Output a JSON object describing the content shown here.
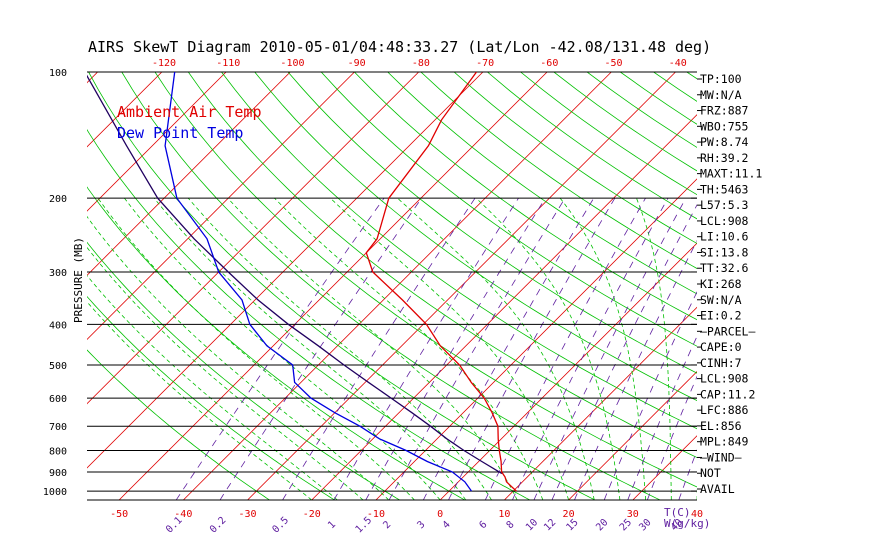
{
  "chart_data": {
    "type": "line",
    "title": "AIRS SkewT Diagram 2010-05-01/04:48:33.27 (Lat/Lon -42.08/131.48 deg)",
    "ylabel": "PRESSURE (MB)",
    "xlabel": "T(C)",
    "mixing_ratio_label": "W(g/kg)",
    "legend": [
      "Ambient Air Temp",
      "Dew Point Temp"
    ],
    "pressure_ticks": [
      100,
      200,
      300,
      400,
      500,
      600,
      700,
      800,
      900,
      1000
    ],
    "bottom_temp_ticks": [
      -50,
      -40,
      -30,
      -20,
      -10,
      0,
      10,
      20,
      30,
      40
    ],
    "top_temp_ticks": [
      -120,
      -110,
      -100,
      -90,
      -80,
      -70,
      -60,
      -50,
      -40
    ],
    "mixing_ratio_ticks": [
      "0.1",
      "0.2",
      "0.5",
      "1",
      "1.5",
      "2",
      "3",
      "4",
      "6",
      "8",
      "10",
      "12",
      "15",
      "20",
      "25",
      "30",
      "40"
    ],
    "ylim": [
      1050,
      100
    ],
    "xlim": [
      -55,
      45
    ],
    "colors": {
      "temperature": "#e00000",
      "dewpoint": "#0000e0",
      "isotherm": "#e00000",
      "dry_adiabat": "#00c000",
      "moist_adiabat": "#00c000",
      "mixing_ratio": "#6020a0",
      "parcel": "#200060",
      "isobar": "#000000"
    },
    "series": [
      {
        "name": "Ambient Air Temp",
        "pressure": [
          1000,
          975,
          950,
          925,
          900,
          850,
          800,
          750,
          700,
          650,
          600,
          550,
          500,
          450,
          400,
          350,
          300,
          270,
          250,
          200,
          150,
          130,
          100
        ],
        "temperature": [
          10.5,
          9.0,
          7.5,
          6.5,
          5.2,
          3.5,
          1.5,
          -0.5,
          -2.5,
          -5.5,
          -9.0,
          -13.5,
          -18.0,
          -24.0,
          -29.5,
          -37.0,
          -46.0,
          -50.0,
          -50.5,
          -55.0,
          -57.0,
          -59.0,
          -61.0
        ]
      },
      {
        "name": "Dew Point Temp",
        "pressure": [
          1000,
          950,
          900,
          850,
          800,
          750,
          700,
          650,
          600,
          550,
          500,
          450,
          400,
          350,
          300,
          250,
          200,
          150,
          100
        ],
        "dewpoint": [
          3.5,
          1.0,
          -2.5,
          -8.0,
          -13.0,
          -19.0,
          -24.0,
          -30.0,
          -36.0,
          -41.0,
          -44.0,
          -51.0,
          -57.0,
          -62.0,
          -70.0,
          -77.0,
          -88.0,
          -98.0,
          -108.0
        ]
      }
    ],
    "parcel_path": {
      "pressure": [
        908,
        850,
        800,
        750,
        700,
        650,
        600,
        550,
        500,
        450,
        400,
        350,
        300,
        250,
        200,
        150,
        100
      ],
      "temperature": [
        5.5,
        0.5,
        -4.0,
        -8.5,
        -13.0,
        -18.0,
        -23.5,
        -29.5,
        -36.0,
        -43.0,
        -51.0,
        -59.5,
        -68.5,
        -79.0,
        -91.0,
        -104.0,
        -122.0
      ]
    }
  },
  "indices": [
    "TP:100",
    "MW:N/A",
    "FRZ:887",
    "WBO:755",
    "PW:8.74",
    "RH:39.2",
    "MAXT:11.1",
    "TH:5463",
    "L57:5.3",
    "LCL:908",
    "LI:10.6",
    "SI:13.8",
    "TT:32.6",
    "KI:268",
    "SW:N/A",
    "EI:0.2",
    "—PARCEL—",
    "CAPE:0",
    "CINH:7",
    "LCL:908",
    "CAP:11.2",
    "LFC:886",
    "EL:856",
    "MPL:849",
    "—WIND—",
    "NOT",
    "AVAIL"
  ]
}
